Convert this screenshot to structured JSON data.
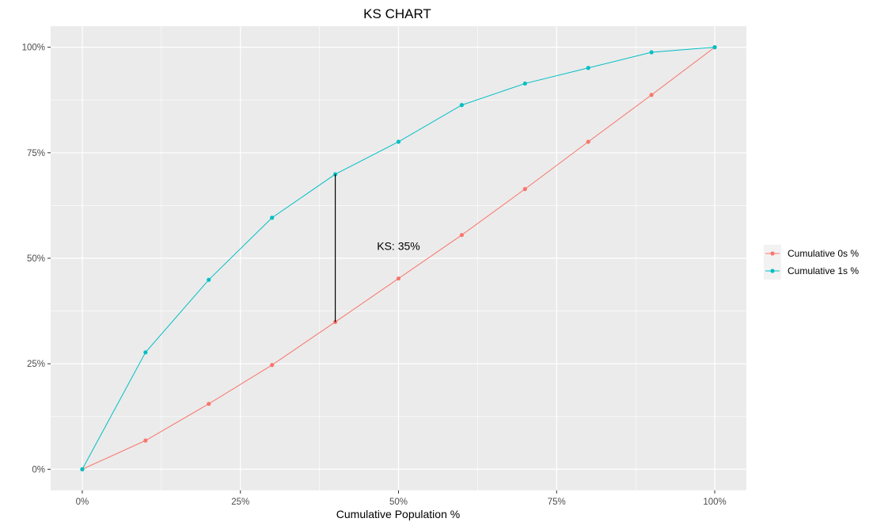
{
  "chart_data": {
    "type": "line",
    "title": "KS CHART",
    "xlabel": "Cumulative Population %",
    "ylabel": "",
    "xlim": [
      -0.05,
      1.05
    ],
    "ylim": [
      -0.05,
      1.05
    ],
    "x_ticks": [
      0,
      0.25,
      0.5,
      0.75,
      1.0
    ],
    "x_tick_labels": [
      "0%",
      "25%",
      "50%",
      "75%",
      "100%"
    ],
    "y_ticks": [
      0,
      0.25,
      0.5,
      0.75,
      1.0
    ],
    "y_tick_labels": [
      "0%",
      "25%",
      "50%",
      "75%",
      "100%"
    ],
    "grid": true,
    "legend_position": "right",
    "x": [
      0,
      0.1,
      0.2,
      0.3,
      0.4,
      0.5,
      0.6,
      0.7,
      0.8,
      0.9,
      1.0
    ],
    "series": [
      {
        "name": "Cumulative 0s %",
        "color": "#F8766D",
        "values": [
          0,
          0.068,
          0.155,
          0.247,
          0.349,
          0.452,
          0.555,
          0.664,
          0.776,
          0.887,
          1.0
        ]
      },
      {
        "name": "Cumulative 1s %",
        "color": "#00BFC4",
        "values": [
          0,
          0.277,
          0.449,
          0.596,
          0.699,
          0.776,
          0.863,
          0.914,
          0.951,
          0.988,
          1.0
        ]
      }
    ],
    "ks_segment": {
      "x": 0.4,
      "y_from": 0.349,
      "y_to": 0.699,
      "color": "#000000"
    },
    "annotations": [
      {
        "text": "KS: 35%",
        "x": 0.5,
        "y": 0.52
      }
    ],
    "colors": {
      "panel_background": "#EBEBEB",
      "grid_line": "#FFFFFF"
    }
  }
}
